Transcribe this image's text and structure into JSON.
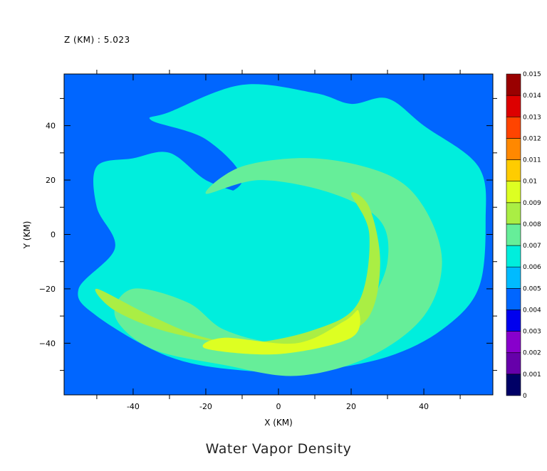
{
  "chart_data": {
    "type": "heatmap",
    "title": "Water Vapor Density",
    "subtitle": "Z (KM) : 5.023",
    "xlabel": "X (KM)",
    "ylabel": "Y (KM)",
    "xlim": [
      -59,
      59
    ],
    "ylim": [
      -59,
      59
    ],
    "x_ticks": [
      -40,
      -20,
      0,
      20,
      40
    ],
    "y_ticks": [
      40,
      20,
      0,
      -20,
      -40
    ],
    "x_tick_labels": [
      "-40",
      "-20",
      "0",
      "20",
      "40"
    ],
    "y_tick_labels": [
      "40",
      "20",
      "0",
      "−20",
      "−40"
    ],
    "grid": false,
    "colorbar": {
      "levels": [
        0,
        0.001,
        0.002,
        0.003,
        0.004,
        0.005,
        0.006,
        0.007,
        0.008,
        0.009,
        0.01,
        0.011,
        0.012,
        0.013,
        0.014,
        0.015
      ],
      "labels": [
        "0",
        "0.001",
        "0.002",
        "0.003",
        "0.004",
        "0.005",
        "0.006",
        "0.007",
        "0.008",
        "0.009",
        "0.01",
        "0.011",
        "0.012",
        "0.013",
        "0.014",
        "0.015"
      ],
      "colors": [
        "#000066",
        "#6600aa",
        "#8800cc",
        "#0000ee",
        "#0066ff",
        "#00bbff",
        "#00eedd",
        "#66ee99",
        "#aaee44",
        "#ddff22",
        "#ffcc00",
        "#ff8800",
        "#ff4400",
        "#dd0000",
        "#990000"
      ]
    },
    "background_level": 0.004,
    "contour_features": [
      {
        "level": 0.006,
        "description": "broad spiral band",
        "path_data": [
          [
            -30,
            45
          ],
          [
            -10,
            55
          ],
          [
            10,
            52
          ],
          [
            20,
            48
          ],
          [
            30,
            50
          ],
          [
            40,
            40
          ],
          [
            55,
            25
          ],
          [
            57,
            5
          ],
          [
            55,
            -20
          ],
          [
            45,
            -35
          ],
          [
            30,
            -45
          ],
          [
            10,
            -50
          ],
          [
            -10,
            -50
          ],
          [
            -30,
            -45
          ],
          [
            -50,
            -30
          ],
          [
            -55,
            -20
          ],
          [
            -45,
            -5
          ],
          [
            -50,
            10
          ],
          [
            -50,
            25
          ],
          [
            -40,
            28
          ],
          [
            -30,
            30
          ],
          [
            -20,
            20
          ],
          [
            -10,
            15
          ],
          [
            0,
            10
          ],
          [
            10,
            0
          ],
          [
            20,
            -5
          ],
          [
            25,
            -20
          ],
          [
            15,
            -30
          ],
          [
            0,
            -30
          ],
          [
            -15,
            -20
          ],
          [
            -25,
            -5
          ],
          [
            -20,
            10
          ],
          [
            -10,
            20
          ],
          [
            -20,
            35
          ],
          [
            -35,
            42
          ]
        ]
      },
      {
        "level": 0.007,
        "description": "inner ring",
        "path_data": [
          [
            -20,
            15
          ],
          [
            -10,
            25
          ],
          [
            10,
            28
          ],
          [
            30,
            22
          ],
          [
            40,
            10
          ],
          [
            45,
            -10
          ],
          [
            40,
            -30
          ],
          [
            25,
            -45
          ],
          [
            5,
            -52
          ],
          [
            -15,
            -48
          ],
          [
            -35,
            -42
          ],
          [
            -45,
            -30
          ],
          [
            -40,
            -20
          ],
          [
            -25,
            -25
          ],
          [
            -15,
            -35
          ],
          [
            0,
            -40
          ],
          [
            15,
            -38
          ],
          [
            25,
            -25
          ],
          [
            30,
            -10
          ],
          [
            28,
            5
          ],
          [
            15,
            15
          ],
          [
            -5,
            20
          ]
        ]
      },
      {
        "level": 0.008,
        "description": "southern arc",
        "path_data": [
          [
            -50,
            -20
          ],
          [
            -35,
            -30
          ],
          [
            -20,
            -38
          ],
          [
            0,
            -42
          ],
          [
            15,
            -38
          ],
          [
            25,
            -30
          ],
          [
            28,
            -10
          ],
          [
            25,
            10
          ],
          [
            20,
            15
          ],
          [
            25,
            0
          ],
          [
            22,
            -25
          ],
          [
            10,
            -35
          ],
          [
            -10,
            -40
          ],
          [
            -30,
            -36
          ],
          [
            -45,
            -28
          ]
        ]
      },
      {
        "level": 0.009,
        "description": "yellow-green cores",
        "path_data": [
          [
            -15,
            -38
          ],
          [
            5,
            -40
          ],
          [
            18,
            -32
          ],
          [
            22,
            -28
          ],
          [
            20,
            -38
          ],
          [
            0,
            -44
          ],
          [
            -20,
            -42
          ]
        ]
      }
    ]
  }
}
